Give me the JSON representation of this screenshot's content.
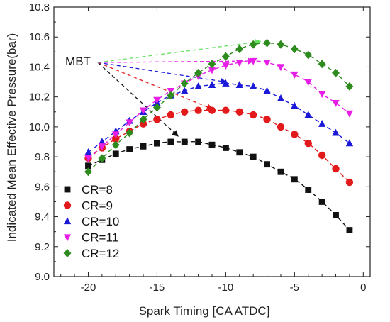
{
  "chart_data": {
    "type": "scatter",
    "title": "",
    "xlabel": "Spark Timing [CA ATDC]",
    "ylabel": "Indicated Mean Effective Pressure(bar)",
    "xlim": [
      -22.5,
      0.5
    ],
    "ylim": [
      9.0,
      10.8
    ],
    "xticks": [
      -20,
      -15,
      -10,
      -5,
      0
    ],
    "yticks": [
      9.0,
      9.2,
      9.4,
      9.6,
      9.8,
      10.0,
      10.2,
      10.4,
      10.6,
      10.8
    ],
    "grid": false,
    "legend_position": "lower-left",
    "annotation": {
      "text": "MBT",
      "anchor": [
        -19.3,
        10.43
      ],
      "targets": [
        {
          "series": "CR=8",
          "x": -13.5,
          "y": 9.94
        },
        {
          "series": "CR=9",
          "x": -11.0,
          "y": 10.12
        },
        {
          "series": "CR=10",
          "x": -10.0,
          "y": 10.3
        },
        {
          "series": "CR=11",
          "x": -8.0,
          "y": 10.44
        },
        {
          "series": "CR=12",
          "x": -7.5,
          "y": 10.57
        }
      ]
    },
    "series": [
      {
        "name": "CR=8",
        "color": "#111111",
        "marker": "square",
        "x": [
          -20,
          -19,
          -18,
          -17,
          -16,
          -15,
          -14,
          -13,
          -12,
          -11,
          -10,
          -9,
          -8,
          -7,
          -6,
          -5,
          -4,
          -3,
          -2,
          -1
        ],
        "y": [
          9.74,
          9.78,
          9.82,
          9.85,
          9.87,
          9.89,
          9.9,
          9.9,
          9.9,
          9.88,
          9.86,
          9.83,
          9.8,
          9.75,
          9.7,
          9.65,
          9.58,
          9.5,
          9.41,
          9.31
        ]
      },
      {
        "name": "CR=9",
        "color": "#e31a1c",
        "marker": "circle",
        "x": [
          -20,
          -19,
          -18,
          -17,
          -16,
          -15,
          -14,
          -13,
          -12,
          -11,
          -10,
          -9,
          -8,
          -7,
          -6,
          -5,
          -4,
          -3,
          -2,
          -1
        ],
        "y": [
          9.79,
          9.86,
          9.92,
          9.97,
          10.02,
          10.05,
          10.08,
          10.1,
          10.11,
          10.11,
          10.11,
          10.1,
          10.08,
          10.05,
          10.0,
          9.95,
          9.89,
          9.81,
          9.72,
          9.63
        ]
      },
      {
        "name": "CR=10",
        "color": "#1a1ad8",
        "marker": "triangle-up",
        "x": [
          -20,
          -19,
          -18,
          -17,
          -16,
          -15,
          -14,
          -13,
          -12,
          -11,
          -10,
          -9,
          -8,
          -7,
          -6,
          -5,
          -4,
          -3,
          -2,
          -1
        ],
        "y": [
          9.83,
          9.9,
          9.97,
          10.04,
          10.1,
          10.16,
          10.21,
          10.24,
          10.27,
          10.28,
          10.29,
          10.28,
          10.27,
          10.24,
          10.19,
          10.14,
          10.08,
          10.02,
          9.96,
          9.89
        ]
      },
      {
        "name": "CR=11",
        "color": "#e61ee6",
        "marker": "triangle-down",
        "x": [
          -20,
          -19,
          -18,
          -17,
          -16,
          -15,
          -14,
          -13,
          -12,
          -11,
          -10,
          -9,
          -8,
          -7,
          -6,
          -5,
          -4,
          -3,
          -2,
          -1
        ],
        "y": [
          9.79,
          9.87,
          9.95,
          10.03,
          10.11,
          10.18,
          10.24,
          10.29,
          10.34,
          10.38,
          10.41,
          10.43,
          10.44,
          10.43,
          10.4,
          10.35,
          10.3,
          10.22,
          10.16,
          10.09
        ]
      },
      {
        "name": "CR=12",
        "color": "#2e8b1e",
        "marker": "diamond",
        "x": [
          -20,
          -19,
          -18,
          -17,
          -16,
          -15,
          -14,
          -13,
          -12,
          -11,
          -10,
          -9,
          -8,
          -7,
          -6,
          -5,
          -4,
          -3,
          -2,
          -1
        ],
        "y": [
          9.7,
          9.79,
          9.88,
          9.96,
          10.05,
          10.13,
          10.21,
          10.29,
          10.36,
          10.42,
          10.47,
          10.52,
          10.55,
          10.56,
          10.55,
          10.52,
          10.48,
          10.42,
          10.36,
          10.27
        ]
      }
    ]
  }
}
